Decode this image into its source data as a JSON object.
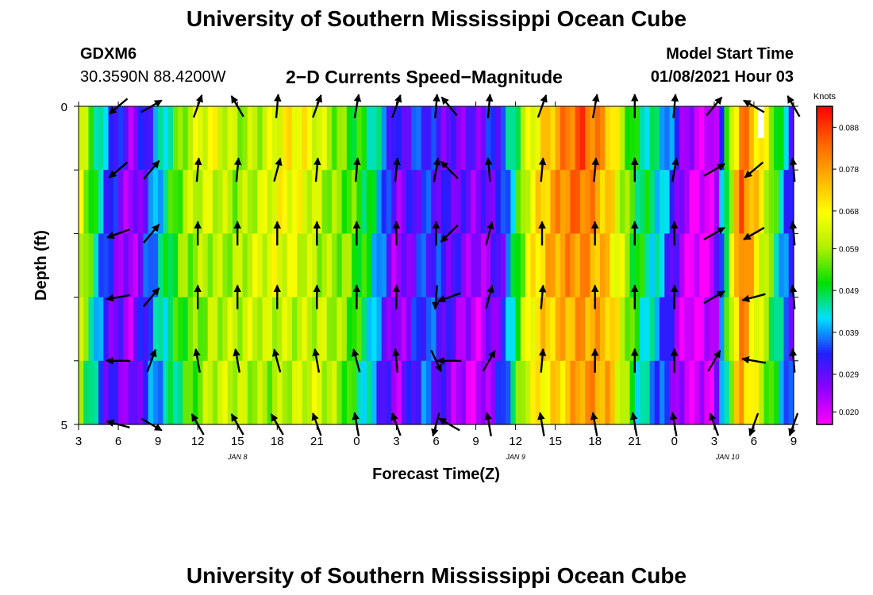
{
  "header": {
    "title": "University of Southern Mississippi Ocean Cube",
    "station": "GDXM6",
    "location": "30.3590N 88.4200W",
    "subtitle": "2−D Currents Speed−Magnitude",
    "model_start_label": "Model Start Time",
    "model_start_value": "01/08/2021 Hour 03"
  },
  "footer": {
    "title": "University of Southern Mississippi Ocean Cube"
  },
  "chart_data": {
    "type": "heatmap",
    "title": "2−D Currents Speed−Magnitude",
    "xlabel": "Forecast Time(Z)",
    "ylabel": "Depth (ft)",
    "ylim": [
      0,
      5
    ],
    "y_tick_labels": [
      "0",
      "",
      "",
      "",
      "",
      "5"
    ],
    "x_tick_labels": [
      "3",
      "6",
      "9",
      "12",
      "15",
      "18",
      "21",
      "0",
      "3",
      "6",
      "9",
      "12",
      "15",
      "18",
      "21",
      "0",
      "3",
      "6",
      "9"
    ],
    "date_labels": [
      {
        "label": "JAN 8",
        "hour_offset": 12
      },
      {
        "label": "JAN 9",
        "hour_offset": 33
      },
      {
        "label": "JAN 10",
        "hour_offset": 49
      }
    ],
    "x_range_hours": [
      0,
      54
    ],
    "depth_rows": 5,
    "colorbar": {
      "unit": "Knots",
      "tick_labels": [
        "0.088",
        "0.078",
        "0.068",
        "0.059",
        "0.049",
        "0.039",
        "0.029",
        "0.020"
      ],
      "tick_values": [
        0.088,
        0.078,
        0.068,
        0.059,
        0.049,
        0.039,
        0.029,
        0.02
      ],
      "range": [
        0.017,
        0.093
      ],
      "colors": [
        "#ff00ff",
        "#9000ff",
        "#2020ff",
        "#00e0ff",
        "#00e000",
        "#b0f000",
        "#ffff00",
        "#ffb000",
        "#ff6000",
        "#ff0000"
      ]
    },
    "speed_profile_by_column": [
      0.064,
      0.035,
      0.024,
      0.041,
      0.056,
      0.063,
      0.06,
      0.061,
      0.065,
      0.063,
      0.056,
      0.046,
      0.025,
      0.036,
      0.028,
      0.023,
      0.033,
      0.066,
      0.075,
      0.082,
      0.075,
      0.049,
      0.04,
      0.02,
      0.02,
      0.082,
      0.06,
      0.03
    ],
    "vector_hours": [
      3,
      5.5,
      9,
      12,
      15,
      18,
      21,
      24,
      27,
      28,
      31,
      35,
      39,
      42,
      45,
      48,
      51,
      54
    ],
    "vector_directions_deg": [
      [
        230,
        60,
        20,
        330,
        5,
        20,
        10,
        20,
        5,
        320,
        5,
        20,
        10,
        0,
        5,
        40,
        300,
        330
      ],
      [
        230,
        40,
        5,
        5,
        15,
        5,
        5,
        5,
        10,
        315,
        355,
        5,
        5,
        0,
        10,
        60,
        230,
        355
      ],
      [
        250,
        40,
        0,
        0,
        0,
        0,
        0,
        0,
        0,
        225,
        15,
        0,
        0,
        0,
        0,
        60,
        240,
        355
      ],
      [
        260,
        40,
        0,
        0,
        0,
        0,
        0,
        0,
        185,
        250,
        15,
        5,
        0,
        0,
        0,
        60,
        255,
        355
      ],
      [
        270,
        20,
        350,
        350,
        345,
        350,
        345,
        355,
        155,
        270,
        30,
        5,
        0,
        0,
        0,
        30,
        280,
        355
      ],
      [
        285,
        120,
        330,
        330,
        330,
        340,
        350,
        340,
        195,
        300,
        350,
        350,
        350,
        350,
        350,
        340,
        200,
        200
      ]
    ]
  }
}
